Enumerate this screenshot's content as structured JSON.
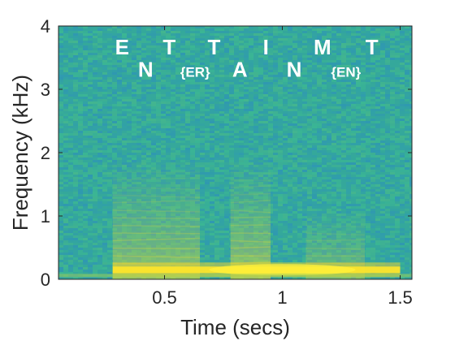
{
  "chart_data": {
    "type": "heatmap",
    "title": "",
    "xlabel": "Time (secs)",
    "ylabel": "Frequency (kHz)",
    "xlim": [
      0.05,
      1.55
    ],
    "ylim": [
      0,
      4
    ],
    "xticks": [
      {
        "value": 0.5,
        "label": "0.5"
      },
      {
        "value": 1,
        "label": "1"
      },
      {
        "value": 1.5,
        "label": "1.5"
      }
    ],
    "yticks": [
      {
        "value": 0,
        "label": "0"
      },
      {
        "value": 1,
        "label": "1"
      },
      {
        "value": 2,
        "label": "2"
      },
      {
        "value": 3,
        "label": "3"
      },
      {
        "value": 4,
        "label": "4"
      }
    ],
    "grid": false,
    "colormap": {
      "low": "#2c8fbf",
      "mid": "#3fbf8f",
      "high": "#f9e630",
      "background": "#35a89b"
    },
    "phoneme_annotations": [
      {
        "label": "E",
        "time": 0.32,
        "freq": 3.55,
        "size": "large"
      },
      {
        "label": "N",
        "time": 0.42,
        "freq": 3.2,
        "size": "large"
      },
      {
        "label": "T",
        "time": 0.52,
        "freq": 3.55,
        "size": "large"
      },
      {
        "label": "{ER}",
        "time": 0.63,
        "freq": 3.2,
        "size": "small"
      },
      {
        "label": "T",
        "time": 0.71,
        "freq": 3.55,
        "size": "large"
      },
      {
        "label": "A",
        "time": 0.82,
        "freq": 3.2,
        "size": "large"
      },
      {
        "label": "I",
        "time": 0.93,
        "freq": 3.55,
        "size": "large"
      },
      {
        "label": "N",
        "time": 1.05,
        "freq": 3.2,
        "size": "large"
      },
      {
        "label": "M",
        "time": 1.17,
        "freq": 3.55,
        "size": "large"
      },
      {
        "label": "{EN}",
        "time": 1.27,
        "freq": 3.2,
        "size": "small"
      },
      {
        "label": "T",
        "time": 1.38,
        "freq": 3.55,
        "size": "large"
      }
    ],
    "energy_regions": [
      {
        "t_start": 0.28,
        "t_end": 0.65,
        "f_max": 1.9,
        "intensity": 0.55
      },
      {
        "t_start": 0.78,
        "t_end": 0.95,
        "f_max": 1.9,
        "intensity": 0.6
      },
      {
        "t_start": 1.1,
        "t_end": 1.35,
        "f_max": 1.1,
        "intensity": 0.4
      }
    ],
    "fundamental_band": {
      "t_start": 0.28,
      "t_end": 1.5,
      "freq": 0.15,
      "intensity": 1.0
    }
  }
}
